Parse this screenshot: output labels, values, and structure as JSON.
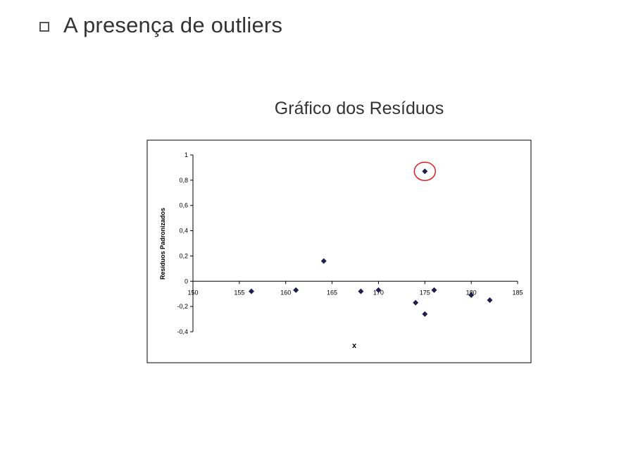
{
  "slide": {
    "bullet_text": "A presença de outliers"
  },
  "chart_data": {
    "type": "scatter",
    "title": "Gráfico dos Resíduos",
    "xlabel": "x",
    "ylabel": "Resíduos Padronizados",
    "xlim": [
      150,
      185
    ],
    "ylim": [
      -0.4,
      1
    ],
    "x_ticks": [
      150,
      155,
      160,
      165,
      170,
      175,
      180,
      185
    ],
    "x_tick_labels": [
      "150",
      "155",
      "160",
      "165",
      "170",
      "175",
      "180",
      "185"
    ],
    "y_ticks": [
      -0.4,
      -0.2,
      0,
      0.2,
      0.4,
      0.6,
      0.8,
      1
    ],
    "y_tick_labels": [
      "-0,4",
      "-0,2",
      "0",
      "0,2",
      "0,4",
      "0,6",
      "0,8",
      "1"
    ],
    "grid": false,
    "legend": "none",
    "marker_color": "#1f1f4d",
    "highlight_color": "#e02020",
    "highlight_point_index": 10,
    "points": [
      {
        "x": 156.3,
        "y": -0.08
      },
      {
        "x": 161.1,
        "y": -0.07
      },
      {
        "x": 164.1,
        "y": 0.16
      },
      {
        "x": 168.1,
        "y": -0.08
      },
      {
        "x": 170.0,
        "y": -0.07
      },
      {
        "x": 174.0,
        "y": -0.17
      },
      {
        "x": 175.0,
        "y": -0.26
      },
      {
        "x": 176.0,
        "y": -0.07
      },
      {
        "x": 180.0,
        "y": -0.11
      },
      {
        "x": 182.0,
        "y": -0.15
      },
      {
        "x": 175.0,
        "y": 0.87
      }
    ]
  }
}
